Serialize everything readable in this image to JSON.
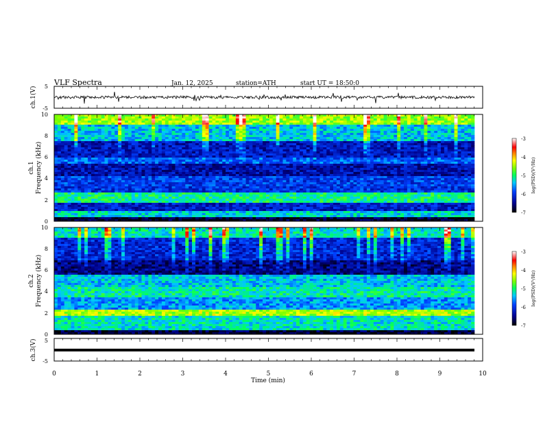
{
  "header": {
    "title": "VLF Spectra",
    "date": "Jan. 12, 2025",
    "station": "station=ATH",
    "start": "start UT = 18:50:0"
  },
  "chart_data": [
    {
      "type": "line",
      "ylabel": "ch.1(V)",
      "ylim": [
        -5,
        5
      ],
      "yticks": [
        "5",
        "-5"
      ],
      "xlim": [
        0,
        10
      ]
    },
    {
      "type": "heatmap",
      "ylabel_1": "ch.1",
      "ylabel_2": "Frequency (kHz)",
      "ylim": [
        0,
        10
      ],
      "yticks": [
        "10",
        "8",
        "6",
        "4",
        "2",
        "0"
      ],
      "colorbar": {
        "label": "log(PSD)(V²/Hz)",
        "ticks": [
          "-3",
          "-4",
          "-5",
          "-6",
          "-7"
        ],
        "range": [
          -7,
          -3
        ]
      }
    },
    {
      "type": "heatmap",
      "ylabel_1": "ch.2",
      "ylabel_2": "Frequency (kHz)",
      "ylim": [
        0,
        10
      ],
      "yticks": [
        "10",
        "8",
        "6",
        "4",
        "2",
        "0"
      ],
      "colorbar": {
        "label": "log(PSD)(V²/Hz)",
        "ticks": [
          "-3",
          "-4",
          "-5",
          "-6",
          "-7"
        ],
        "range": [
          -7,
          -3
        ]
      }
    },
    {
      "type": "line",
      "ylabel": "ch.3(V)",
      "ylim": [
        -5,
        5
      ],
      "yticks": [
        "5",
        "-5"
      ],
      "xlabel": "Time (min)",
      "xlim": [
        0,
        10
      ],
      "xticks": [
        "0",
        "1",
        "2",
        "3",
        "4",
        "5",
        "6",
        "7",
        "8",
        "9",
        "10"
      ]
    }
  ]
}
